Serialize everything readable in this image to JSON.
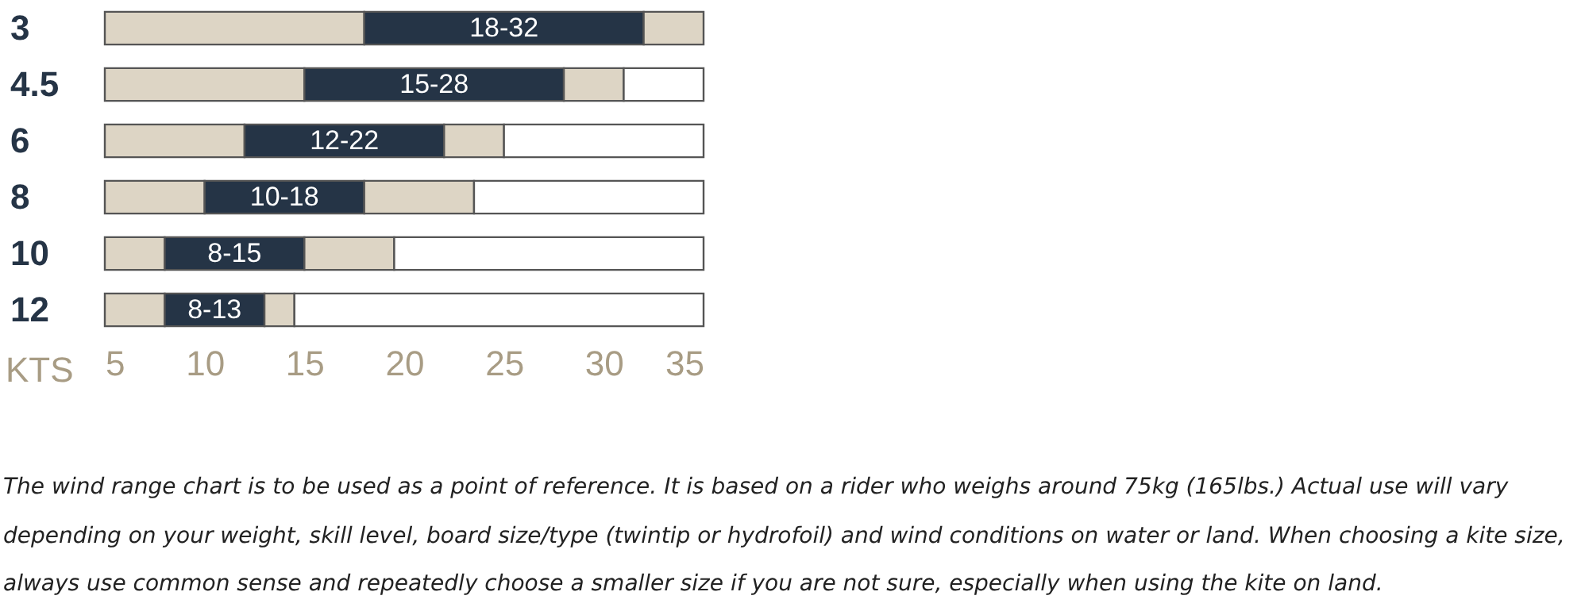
{
  "chart_data": {
    "type": "bar",
    "orientation": "horizontal",
    "xlabel": "KTS",
    "categories": [
      "3",
      "4.5",
      "6",
      "8",
      "10",
      "12"
    ],
    "series": [
      {
        "color": "#ddd5c5",
        "base": [
          5,
          5,
          5,
          5,
          5,
          5
        ],
        "values": [
          13,
          10,
          7,
          5,
          3,
          3
        ]
      },
      {
        "color": "#253446",
        "base": [
          18,
          15,
          12,
          10,
          8,
          8
        ],
        "values": [
          14,
          13,
          10,
          8,
          7,
          5
        ],
        "value_labels": [
          "18-32",
          "15-28",
          "12-22",
          "10-18",
          "8-15",
          "8-13"
        ]
      },
      {
        "color": "#ddd5c5",
        "base": [
          32,
          28,
          22,
          18,
          15,
          13
        ],
        "values": [
          3,
          3,
          3,
          5.5,
          4.5,
          1.5
        ]
      },
      {
        "color": "#ffffff",
        "base": [
          null,
          31,
          25,
          23.5,
          19.5,
          14.5
        ],
        "values": [
          null,
          4,
          10,
          11.5,
          15.5,
          20.5
        ]
      }
    ],
    "xlim": [
      5,
      35
    ],
    "xticks": [
      5,
      10,
      15,
      20,
      25,
      30,
      35
    ],
    "annotations": [
      "The wind range chart is to be used as a point of reference. It is based on a rider who weighs around 75kg (165lbs.) Actual use will vary depending on your weight, skill level, board size/type (twintip or hydrofoil) and wind conditions on water or land. When choosing a kite size, always use common sense and repeatedly choose a smaller size if you are not sure, especially when using the kite on land."
    ]
  }
}
